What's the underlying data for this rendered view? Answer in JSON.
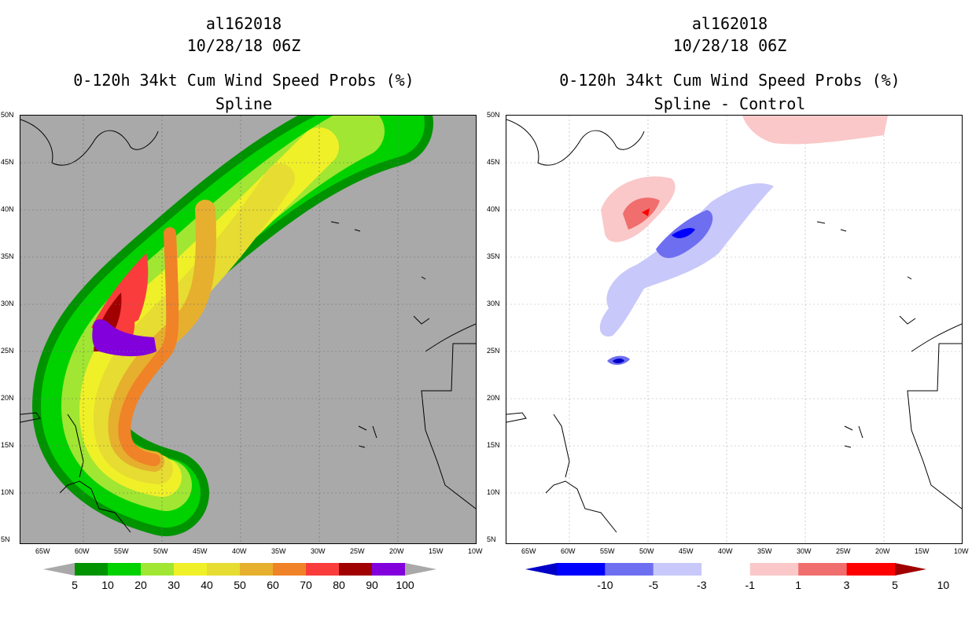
{
  "left_panel": {
    "storm_id": "al162018",
    "datetime": "10/28/18 06Z",
    "product": "0-120h 34kt Cum Wind Speed Probs (%)",
    "subtitle": "Spline"
  },
  "right_panel": {
    "storm_id": "al162018",
    "datetime": "10/28/18 06Z",
    "product": "0-120h 34kt Cum Wind Speed Probs (%)",
    "subtitle": "Spline - Control"
  },
  "lat_ticks": [
    "50N",
    "45N",
    "40N",
    "35N",
    "30N",
    "25N",
    "20N",
    "15N",
    "10N",
    "5N"
  ],
  "lon_ticks": [
    "65W",
    "60W",
    "55W",
    "50W",
    "45W",
    "40W",
    "35W",
    "30W",
    "25W",
    "20W",
    "15W",
    "10W"
  ],
  "left_colorbar": {
    "labels": [
      "5",
      "10",
      "20",
      "30",
      "40",
      "50",
      "60",
      "70",
      "80",
      "90",
      "100"
    ],
    "colors": [
      "#009300",
      "#00d200",
      "#a0e632",
      "#f0f028",
      "#e6dc32",
      "#e6af2d",
      "#f08228",
      "#fa3c3c",
      "#a00000",
      "#8200dc"
    ],
    "background": "#a9a9a9"
  },
  "right_colorbar": {
    "labels": [
      "-10",
      "-5",
      "-3",
      "-1",
      "1",
      "3",
      "5",
      "10"
    ],
    "colors": [
      "#0000c8",
      "#0000ff",
      "#6e6ef0",
      "#c8c8fa",
      "#ffffff",
      "#fac8c8",
      "#f06e6e",
      "#ff0000",
      "#a00000"
    ]
  }
}
